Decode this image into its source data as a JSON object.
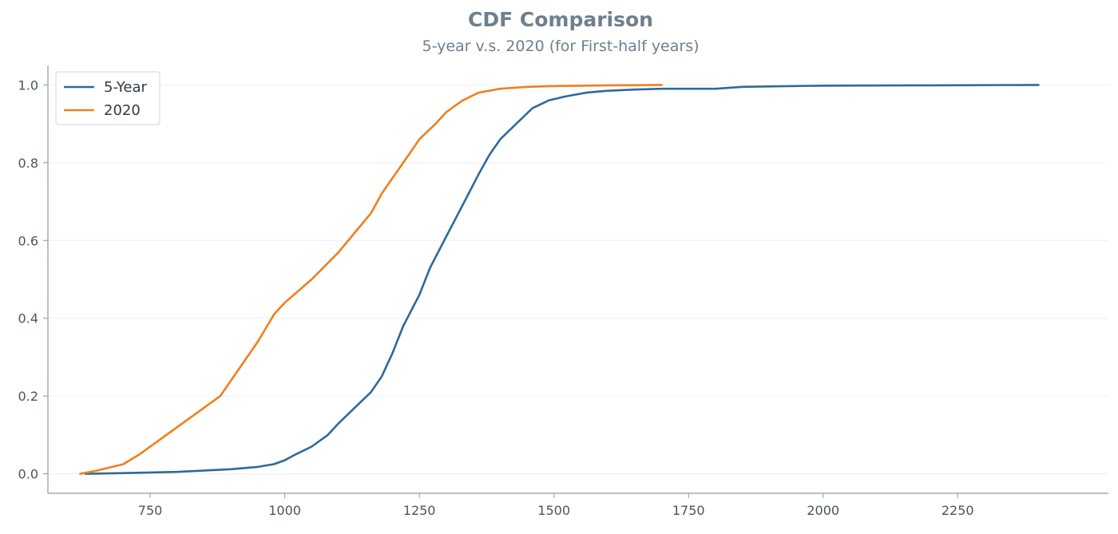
{
  "chart_data": {
    "type": "line",
    "title": "CDF Comparison",
    "subtitle": "5-year v.s. 2020 (for First-half years)",
    "xlabel": "",
    "ylabel": "",
    "xlim": [
      560,
      2530
    ],
    "ylim": [
      -0.05,
      1.05
    ],
    "x_ticks": [
      750,
      1000,
      1250,
      1500,
      1750,
      2000,
      2250
    ],
    "x_tick_labels": [
      "750",
      "1000",
      "1250",
      "1500",
      "1750",
      "2000",
      "2250"
    ],
    "y_ticks": [
      0.0,
      0.2,
      0.4,
      0.6,
      0.8,
      1.0
    ],
    "y_tick_labels": [
      "0.0",
      "0.2",
      "0.4",
      "0.6",
      "0.8",
      "1.0"
    ],
    "grid": "horizontal",
    "legend_position": "top-left",
    "series": [
      {
        "name": "5-Year",
        "color": "#2e6a9a",
        "x": [
          630,
          700,
          800,
          900,
          950,
          980,
          1000,
          1020,
          1050,
          1080,
          1100,
          1130,
          1160,
          1180,
          1200,
          1220,
          1250,
          1270,
          1300,
          1330,
          1360,
          1380,
          1400,
          1430,
          1460,
          1490,
          1520,
          1560,
          1600,
          1650,
          1700,
          1800,
          1850,
          2000,
          2200,
          2400
        ],
        "y": [
          0.0,
          0.002,
          0.005,
          0.012,
          0.018,
          0.025,
          0.035,
          0.05,
          0.07,
          0.1,
          0.13,
          0.17,
          0.21,
          0.25,
          0.31,
          0.38,
          0.46,
          0.53,
          0.61,
          0.69,
          0.77,
          0.82,
          0.86,
          0.9,
          0.94,
          0.96,
          0.97,
          0.98,
          0.985,
          0.988,
          0.99,
          0.99,
          0.995,
          0.998,
          0.999,
          1.0
        ]
      },
      {
        "name": "2020",
        "color": "#f07f1c",
        "x": [
          620,
          650,
          700,
          730,
          760,
          800,
          850,
          880,
          920,
          950,
          980,
          1000,
          1050,
          1100,
          1130,
          1160,
          1180,
          1200,
          1230,
          1250,
          1280,
          1300,
          1330,
          1360,
          1400,
          1450,
          1500,
          1600,
          1700
        ],
        "y": [
          0.0,
          0.008,
          0.025,
          0.05,
          0.08,
          0.12,
          0.17,
          0.2,
          0.28,
          0.34,
          0.41,
          0.44,
          0.5,
          0.57,
          0.62,
          0.67,
          0.72,
          0.76,
          0.82,
          0.86,
          0.9,
          0.93,
          0.96,
          0.98,
          0.99,
          0.995,
          0.997,
          0.999,
          1.0
        ]
      }
    ]
  }
}
